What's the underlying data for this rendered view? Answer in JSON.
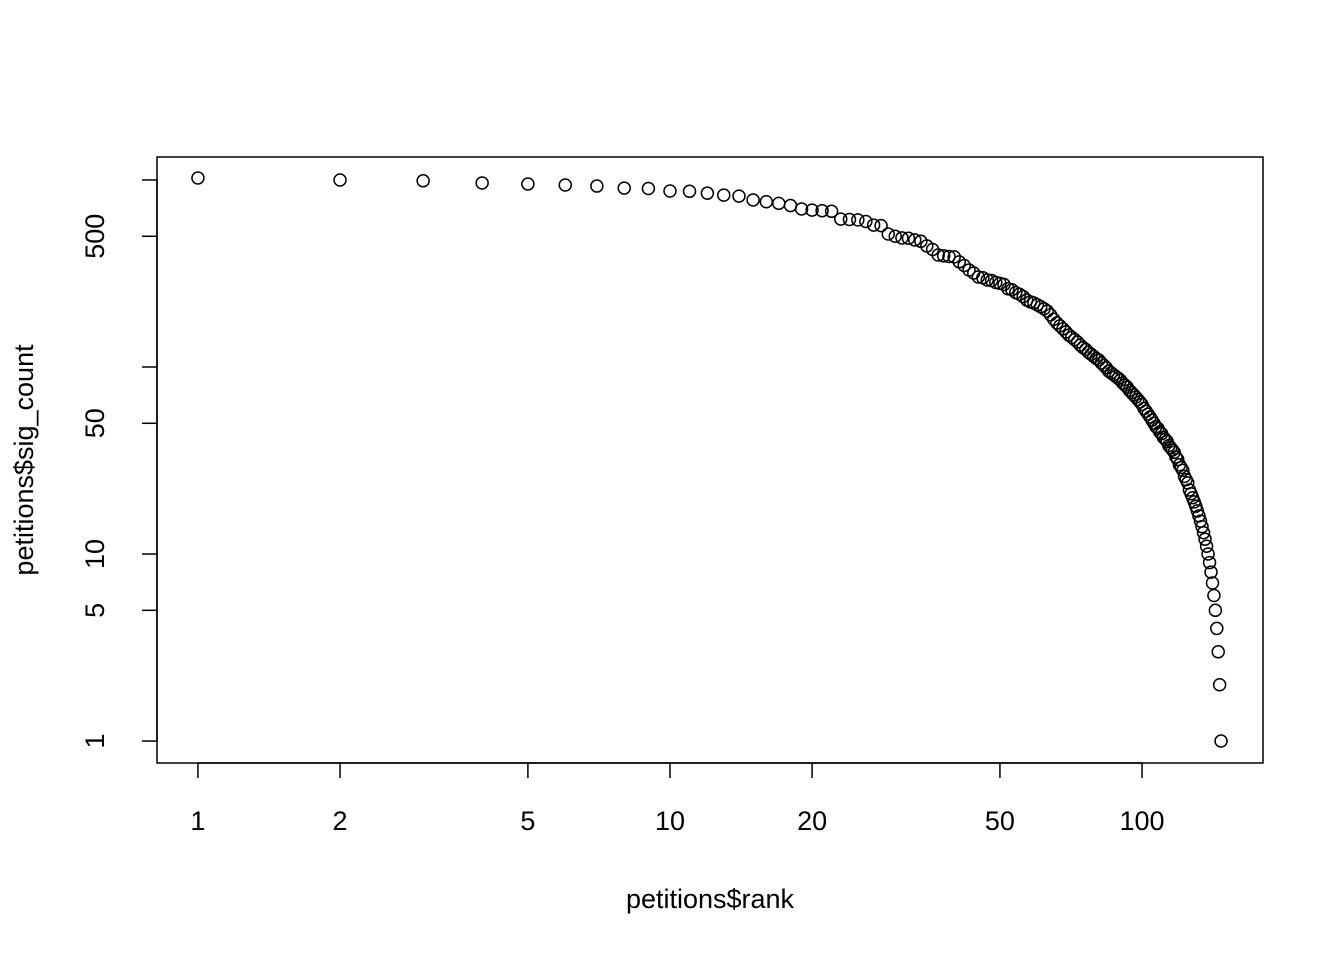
{
  "chart_data": {
    "type": "scatter",
    "x_label": "petitions$rank",
    "y_label": "petitions$sig_count",
    "xlog": true,
    "ylog": true,
    "xlim": [
      0.819,
      180.4
    ],
    "ylim": [
      0.763,
      1327
    ],
    "xticks": [
      1,
      2,
      5,
      10,
      20,
      50,
      100
    ],
    "yticks": [
      1,
      5,
      10,
      50,
      {
        "value": 100,
        "label": null
      },
      500,
      {
        "value": 1000,
        "label": null
      }
    ],
    "color": "#000000",
    "x": [
      1,
      2,
      3,
      4,
      5,
      6,
      7,
      8,
      9,
      10,
      11,
      12,
      13,
      14,
      15,
      16,
      17,
      18,
      19,
      20,
      21,
      22,
      23,
      24,
      25,
      26,
      27,
      28,
      29,
      30,
      31,
      32,
      33,
      34,
      35,
      36,
      37,
      38,
      39,
      40,
      41,
      42,
      43,
      44,
      45,
      46,
      47,
      48,
      49,
      50,
      51,
      52,
      53,
      54,
      55,
      56,
      57,
      58,
      59,
      60,
      61,
      62,
      63,
      64,
      65,
      66,
      67,
      68,
      69,
      70,
      71,
      72,
      73,
      74,
      75,
      76,
      77,
      78,
      79,
      80,
      81,
      82,
      83,
      84,
      85,
      86,
      87,
      88,
      89,
      90,
      91,
      92,
      93,
      94,
      95,
      96,
      97,
      98,
      99,
      100,
      101,
      102,
      103,
      104,
      105,
      106,
      107,
      108,
      109,
      110,
      111,
      112,
      113,
      114,
      115,
      116,
      117,
      118,
      119,
      120,
      121,
      122,
      123,
      124,
      125,
      126,
      127,
      128,
      129,
      130,
      131,
      132,
      133,
      134,
      135,
      136,
      137,
      138,
      139,
      140,
      141,
      142,
      143,
      144,
      145,
      146,
      147
    ],
    "values": [
      1025,
      1000,
      990,
      964,
      952,
      940,
      928,
      905,
      900,
      873,
      870,
      850,
      830,
      820,
      782,
      765,
      750,
      730,
      700,
      690,
      685,
      680,
      618,
      615,
      612,
      600,
      574,
      570,
      514,
      500,
      490,
      488,
      478,
      470,
      444,
      425,
      397,
      393,
      390,
      388,
      365,
      349,
      330,
      318,
      303,
      300,
      292,
      290,
      283,
      280,
      276,
      262,
      259,
      250,
      245,
      238,
      228,
      223,
      220,
      215,
      210,
      205,
      199,
      190,
      180,
      172,
      166,
      160,
      154,
      148,
      144,
      140,
      136,
      131,
      127,
      124,
      120,
      117,
      114,
      111,
      109,
      105,
      102,
      99,
      95,
      93,
      91,
      89,
      87,
      85,
      82,
      80,
      78,
      75,
      73,
      71,
      69,
      67,
      65,
      63,
      60,
      58,
      56,
      54,
      52,
      50,
      48,
      47,
      45,
      44,
      42,
      41,
      40,
      38,
      37,
      36,
      35,
      33,
      32,
      30,
      29,
      28,
      26,
      25,
      24,
      22,
      21,
      20,
      19,
      18,
      17,
      16,
      15,
      14,
      13,
      12,
      11,
      10,
      9,
      8,
      7,
      6,
      5,
      4,
      3,
      2,
      1
    ]
  }
}
